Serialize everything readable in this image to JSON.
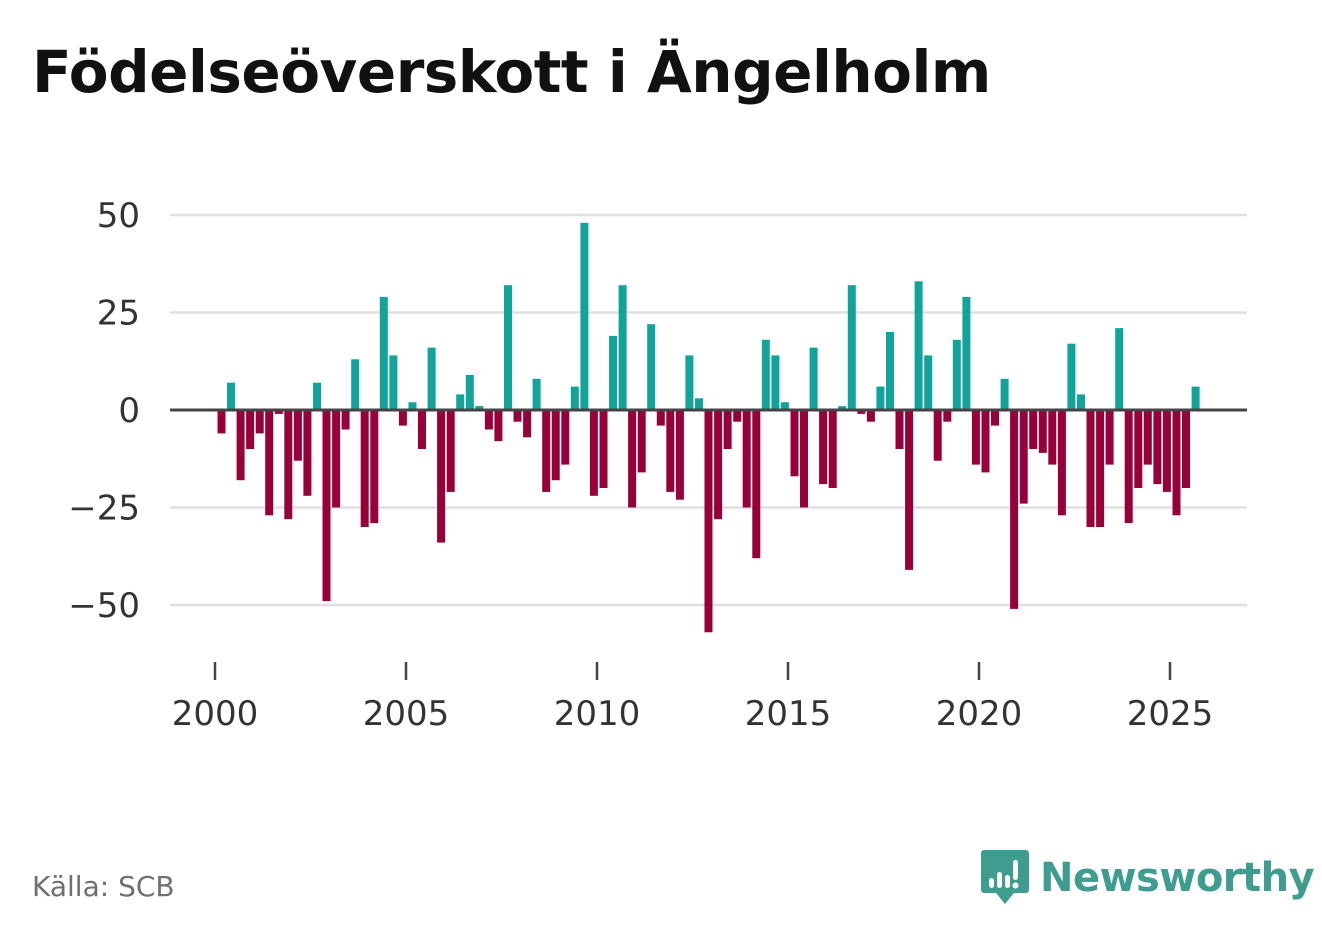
{
  "title": "Födelseöverskott i Ängelholm",
  "source": "Källa: SCB",
  "brand": {
    "name": "Newsworthy",
    "icon": "newsworthy-logo-icon",
    "color": "#3f9d8f"
  },
  "colors": {
    "positive": "#12a49a",
    "negative": "#98003a",
    "grid": "#e0e0e0",
    "zero_line": "#444444",
    "axis_text": "#333333"
  },
  "chart_data": {
    "type": "bar",
    "title": "Födelseöverskott i Ängelholm",
    "xlabel": "",
    "ylabel": "",
    "frequency": "monthly-ish (approx. 4 bars per year)",
    "x_ticks": [
      2000,
      2005,
      2010,
      2015,
      2020,
      2025
    ],
    "x_tick_labels": [
      "2000",
      "2005",
      "2010",
      "2015",
      "2020",
      "2025"
    ],
    "y_ticks": [
      50,
      25,
      0,
      -25,
      -50
    ],
    "y_tick_labels": [
      "50",
      "25",
      "0",
      "−25",
      "−50"
    ],
    "ylim": [
      -63,
      62
    ],
    "xlim": [
      1998.8,
      2027.3
    ],
    "x": [
      2000.17,
      2000.42,
      2000.67,
      2000.92,
      2001.17,
      2001.42,
      2001.67,
      2001.92,
      2002.17,
      2002.42,
      2002.67,
      2002.92,
      2003.17,
      2003.42,
      2003.67,
      2003.92,
      2004.17,
      2004.42,
      2004.67,
      2004.92,
      2005.17,
      2005.42,
      2005.67,
      2005.92,
      2006.17,
      2006.42,
      2006.67,
      2006.92,
      2007.17,
      2007.42,
      2007.67,
      2007.92,
      2008.17,
      2008.42,
      2008.67,
      2008.92,
      2009.17,
      2009.42,
      2009.67,
      2009.92,
      2010.17,
      2010.42,
      2010.67,
      2010.92,
      2011.17,
      2011.42,
      2011.67,
      2011.92,
      2012.17,
      2012.42,
      2012.67,
      2012.92,
      2013.17,
      2013.42,
      2013.67,
      2013.92,
      2014.17,
      2014.42,
      2014.67,
      2014.92,
      2015.17,
      2015.42,
      2015.67,
      2015.92,
      2016.17,
      2016.42,
      2016.67,
      2016.92,
      2017.17,
      2017.42,
      2017.67,
      2017.92,
      2018.17,
      2018.42,
      2018.67,
      2018.92,
      2019.17,
      2019.42,
      2019.67,
      2019.92,
      2020.17,
      2020.42,
      2020.67,
      2020.92,
      2021.17,
      2021.42,
      2021.67,
      2021.92,
      2022.17,
      2022.42,
      2022.67,
      2022.92,
      2023.17,
      2023.42,
      2023.67,
      2023.92,
      2024.17,
      2024.42,
      2024.67,
      2024.92,
      2025.17,
      2025.42,
      2025.67
    ],
    "values": [
      -6,
      7,
      -18,
      -10,
      -6,
      -27,
      -1,
      -28,
      -13,
      -22,
      7,
      -49,
      -25,
      -5,
      13,
      -30,
      -29,
      29,
      14,
      -4,
      2,
      -10,
      16,
      -34,
      -21,
      4,
      9,
      1,
      -5,
      -8,
      32,
      -3,
      -7,
      8,
      -21,
      -18,
      -14,
      6,
      48,
      -22,
      -20,
      19,
      32,
      -25,
      -16,
      22,
      -4,
      -21,
      -23,
      14,
      3,
      -57,
      -28,
      -10,
      -3,
      -25,
      -38,
      18,
      14,
      2,
      -17,
      -25,
      16,
      -19,
      -20,
      1,
      32,
      -1,
      -3,
      6,
      20,
      -10,
      -41,
      33,
      14,
      -13,
      -3,
      18,
      29,
      -14,
      -16,
      -4,
      8,
      -51,
      -24,
      -10,
      -11,
      -14,
      -27,
      17,
      4,
      -30,
      -30,
      -14,
      21,
      -29,
      -20,
      -14,
      -19,
      -21,
      -27,
      -20,
      6
    ]
  }
}
